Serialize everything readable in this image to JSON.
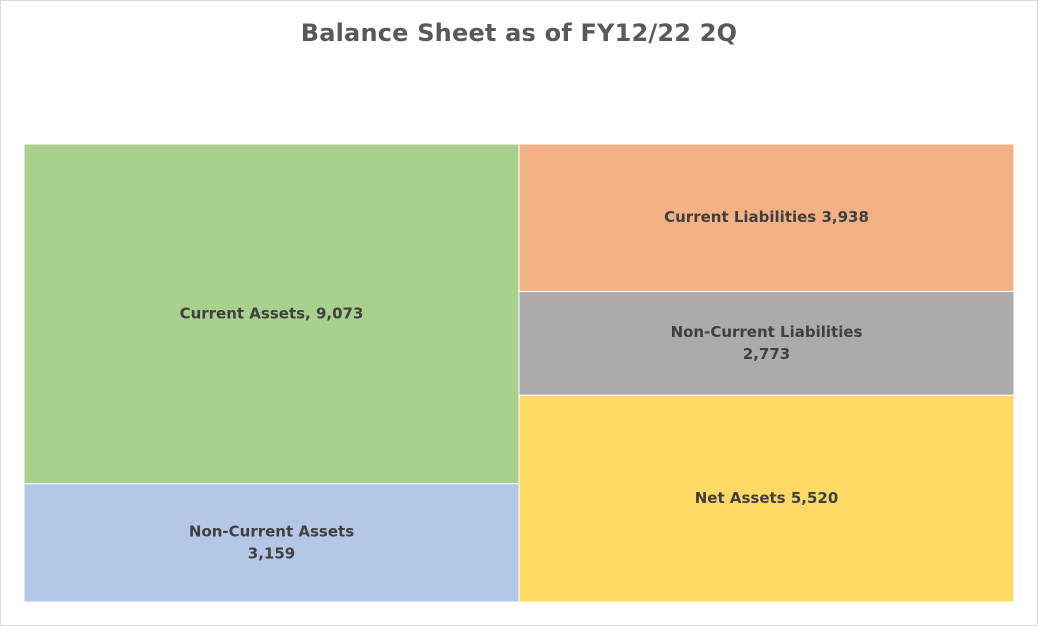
{
  "chart_data": {
    "type": "treemap",
    "title": "Balance Sheet as of FY12/22 2Q",
    "groups": [
      {
        "items": [
          {
            "key": "current-assets",
            "label_lines": [
              "Current Assets, 9,073"
            ],
            "value": 9073,
            "color": "#a9d18e"
          },
          {
            "key": "non-current-assets",
            "label_lines": [
              "Non-Current Assets",
              "3,159"
            ],
            "value": 3159,
            "color": "#b4c7e7"
          }
        ]
      },
      {
        "items": [
          {
            "key": "current-liabilities",
            "label_lines": [
              "Current Liabilities 3,938"
            ],
            "value": 3938,
            "color": "#f4b183"
          },
          {
            "key": "non-current-liabilities",
            "label_lines": [
              "Non-Current Liabilities",
              "2,773"
            ],
            "value": 2773,
            "color": "#aeaaaa"
          },
          {
            "key": "net-assets",
            "label_lines": [
              "Net Assets 5,520"
            ],
            "value": 5520,
            "color": "#ffd966"
          }
        ]
      }
    ]
  }
}
